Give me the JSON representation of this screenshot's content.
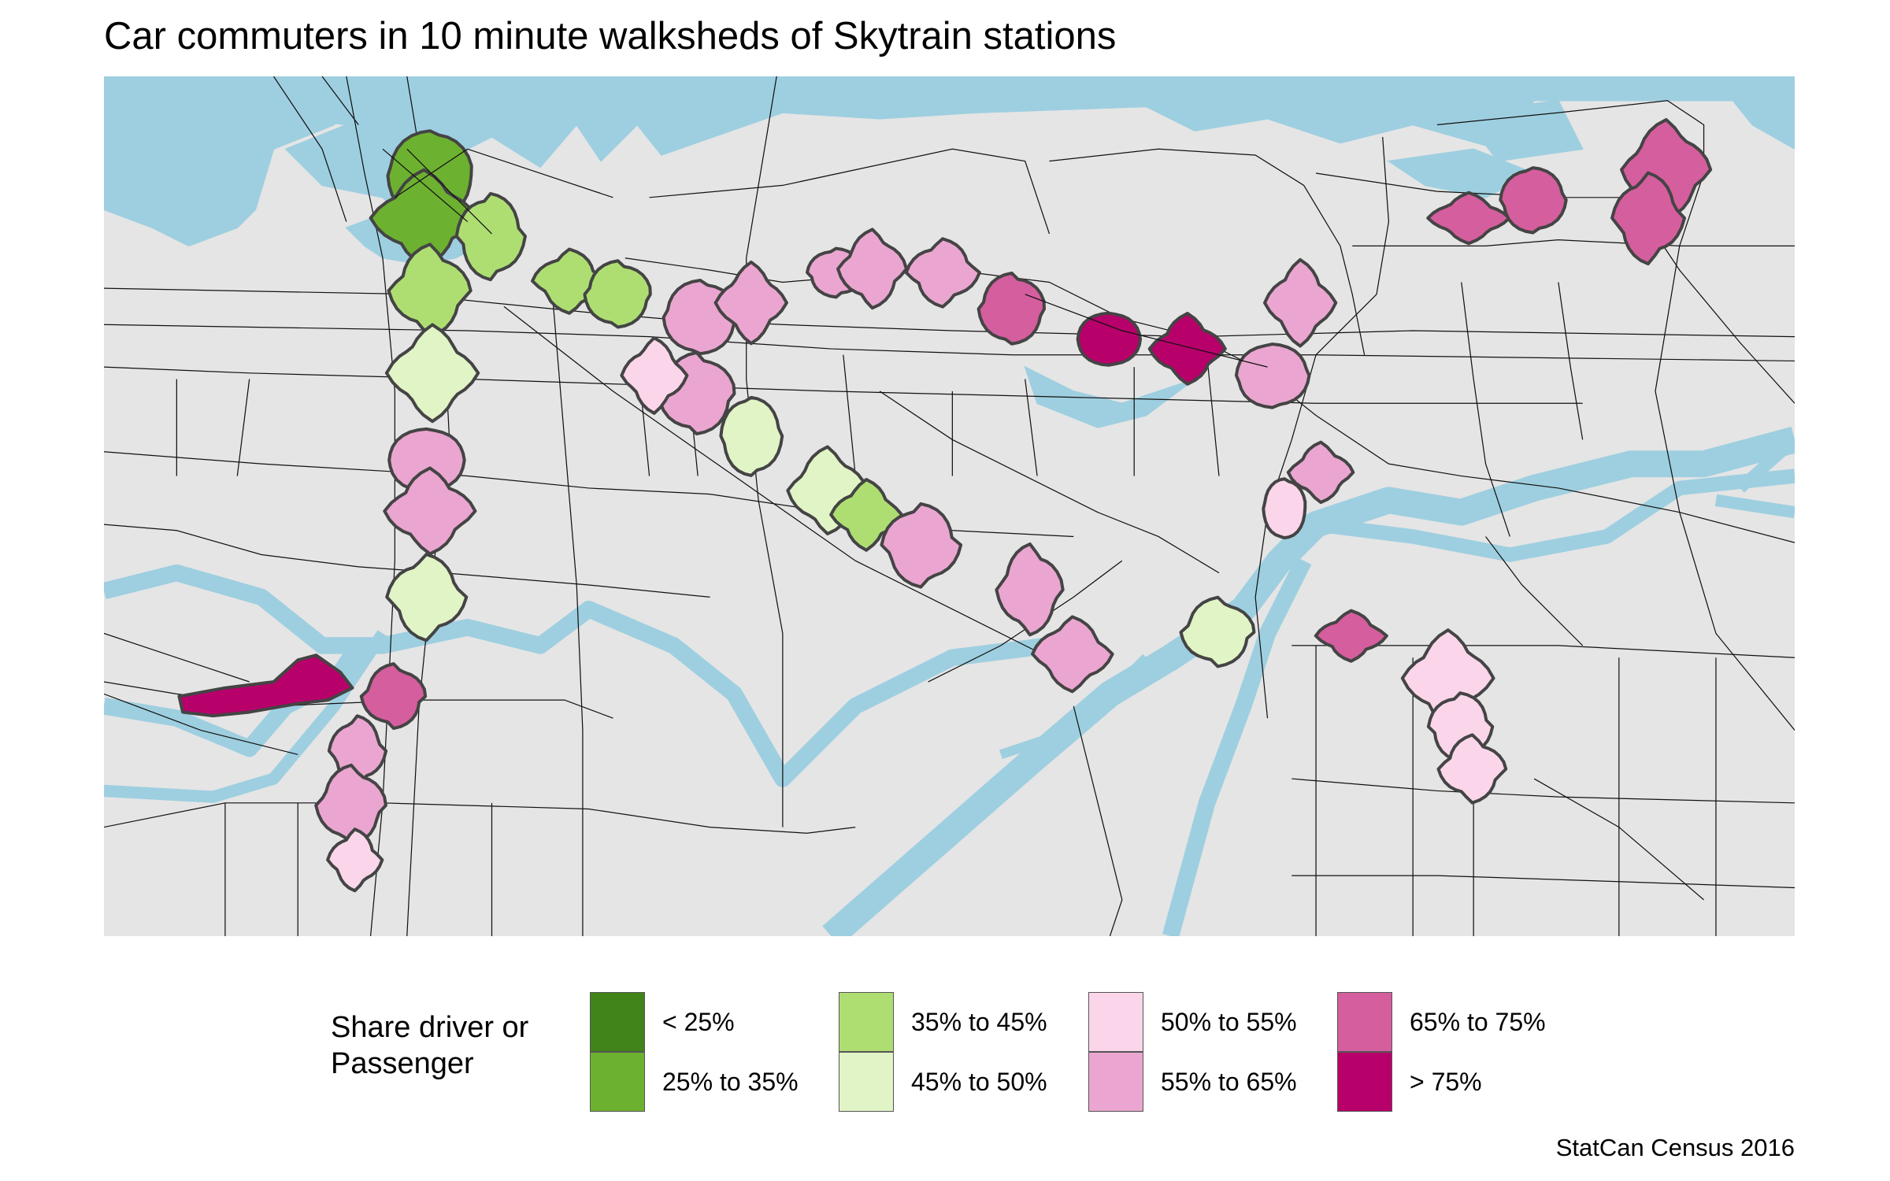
{
  "title": "Car commuters in 10 minute walksheds of Skytrain stations",
  "caption": "StatCan Census 2016",
  "colors": {
    "land": "#e5e5e5",
    "water": "#9ecfe0",
    "roads": "#111111",
    "outline": "#444444"
  },
  "legend": {
    "title_line1": "Share driver or",
    "title_line2": "Passenger",
    "items": [
      {
        "label": "< 25%",
        "color": "#41841a"
      },
      {
        "label": "25% to 35%",
        "color": "#6db130"
      },
      {
        "label": "35% to 45%",
        "color": "#aede72"
      },
      {
        "label": "45% to 50%",
        "color": "#e1f4c6"
      },
      {
        "label": "50% to 55%",
        "color": "#fbd6eb"
      },
      {
        "label": "55% to 65%",
        "color": "#eaa6d0"
      },
      {
        "label": "65% to 75%",
        "color": "#d55e9e"
      },
      {
        "label": "> 75%",
        "color": "#b8006b"
      }
    ]
  }
}
